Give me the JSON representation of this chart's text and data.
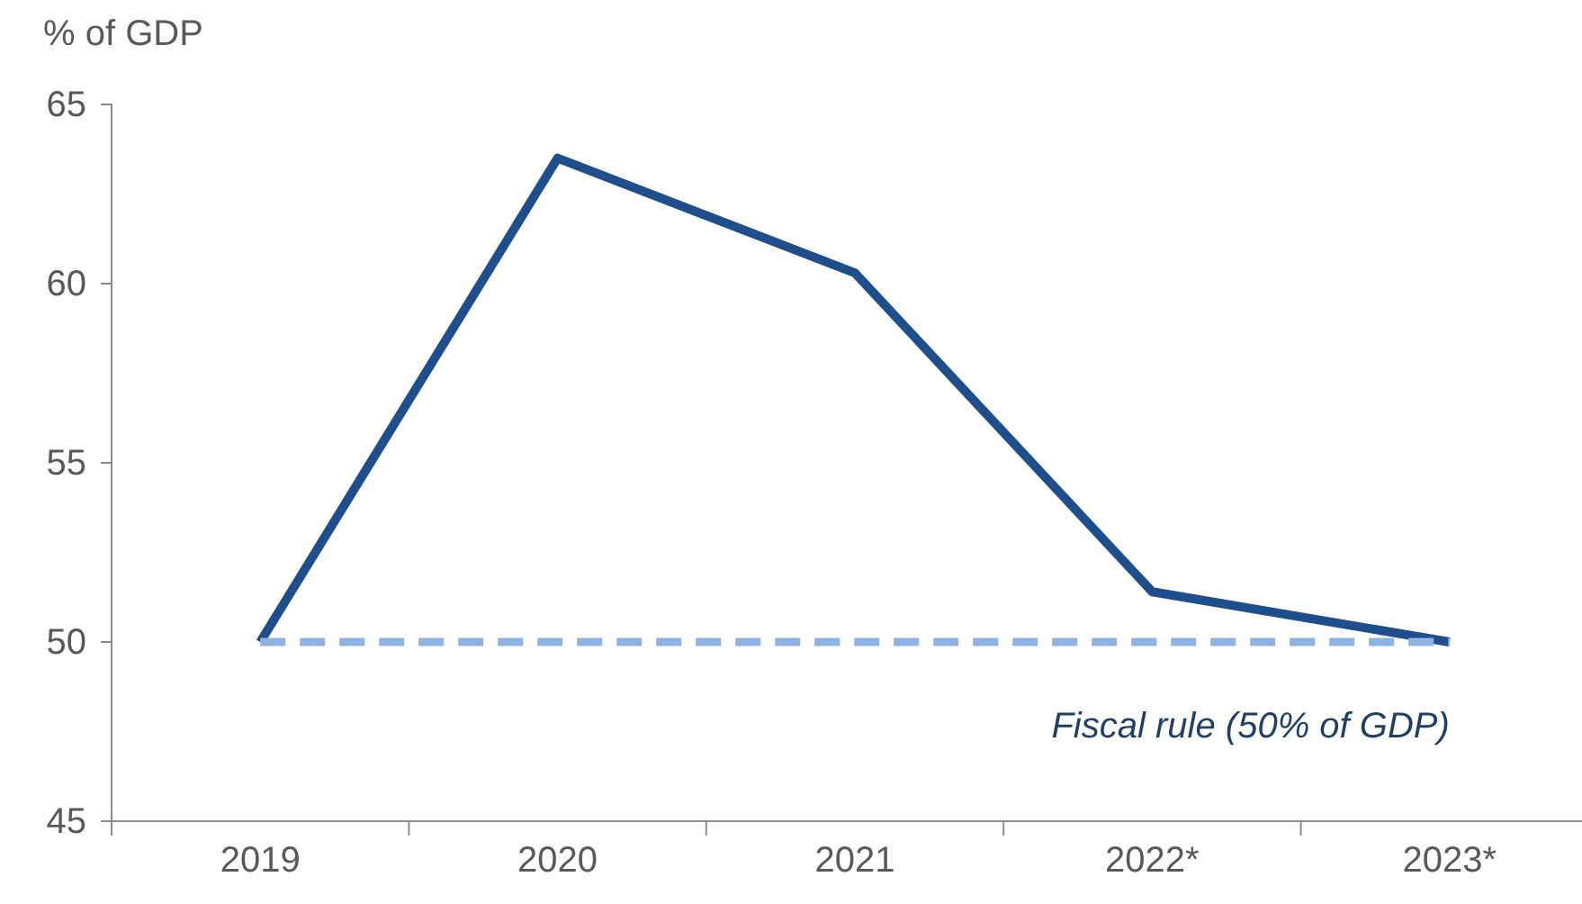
{
  "chart_data": {
    "type": "line",
    "ylabel": "% of GDP",
    "categories": [
      "2019",
      "2020",
      "2021",
      "2022*",
      "2023*"
    ],
    "ylim": [
      45,
      65
    ],
    "yticks": [
      45,
      50,
      55,
      60,
      65
    ],
    "grid": false,
    "legend": false,
    "marker": "none",
    "series": [
      {
        "color": "#1f4e8c",
        "line_style": "solid",
        "values": [
          50.0,
          63.5,
          60.3,
          51.4,
          50.0
        ]
      },
      {
        "name": "Fiscal rule (50% of GDP)",
        "color": "#8db3e2",
        "line_style": "dashed",
        "values": [
          50,
          50,
          50,
          50,
          50
        ]
      }
    ]
  }
}
